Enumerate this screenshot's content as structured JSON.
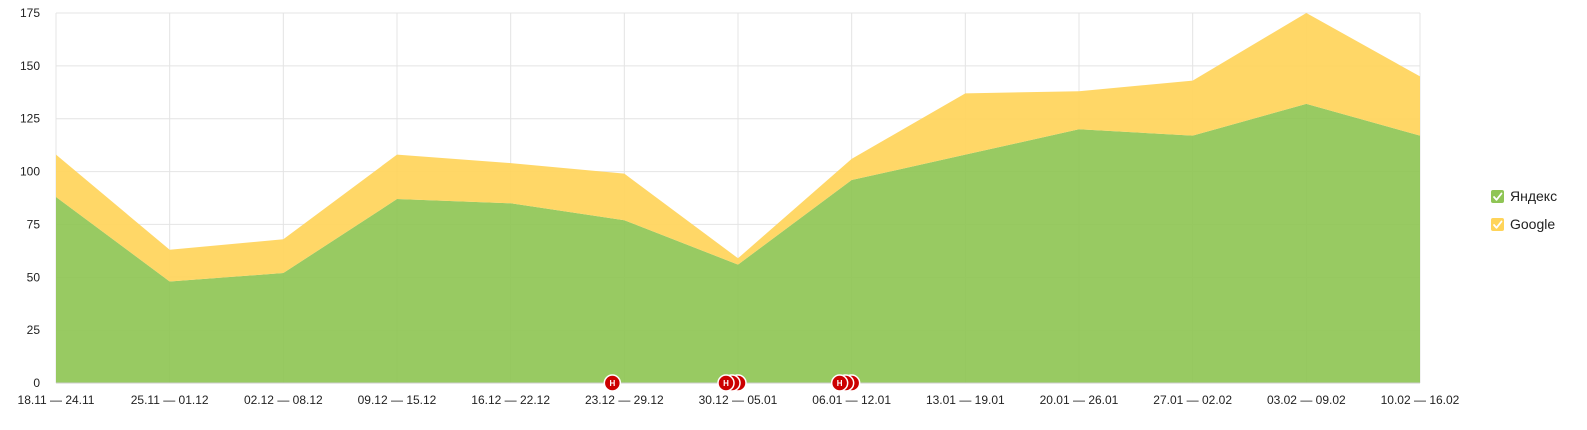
{
  "chart_data": {
    "type": "area",
    "stacked": true,
    "categories": [
      "18.11 — 24.11",
      "25.11 — 01.12",
      "02.12 — 08.12",
      "09.12 — 15.12",
      "16.12 — 22.12",
      "23.12 — 29.12",
      "30.12 — 05.01",
      "06.01 — 12.01",
      "13.01 — 19.01",
      "20.01 — 26.01",
      "27.01 — 02.02",
      "03.02 — 09.02",
      "10.02 — 16.02"
    ],
    "series": [
      {
        "name": "Яндекс",
        "color": "#8fc555",
        "values": [
          88,
          48,
          52,
          87,
          85,
          77,
          56,
          96,
          108,
          120,
          117,
          132,
          117
        ]
      },
      {
        "name": "Google",
        "color": "#ffd45a",
        "values": [
          20,
          15,
          16,
          21,
          19,
          22,
          3,
          10,
          29,
          18,
          26,
          43,
          28
        ]
      }
    ],
    "yticks": [
      0,
      25,
      50,
      75,
      100,
      125,
      150,
      175
    ],
    "ylim": [
      0,
      175
    ],
    "grid": true,
    "legend_position": "right",
    "markers": [
      {
        "label": "Н",
        "category_index": 5,
        "count": 1
      },
      {
        "label": "Н",
        "category_index": 6,
        "count": 3
      },
      {
        "label": "Н",
        "category_index": 7,
        "count": 3
      }
    ]
  }
}
